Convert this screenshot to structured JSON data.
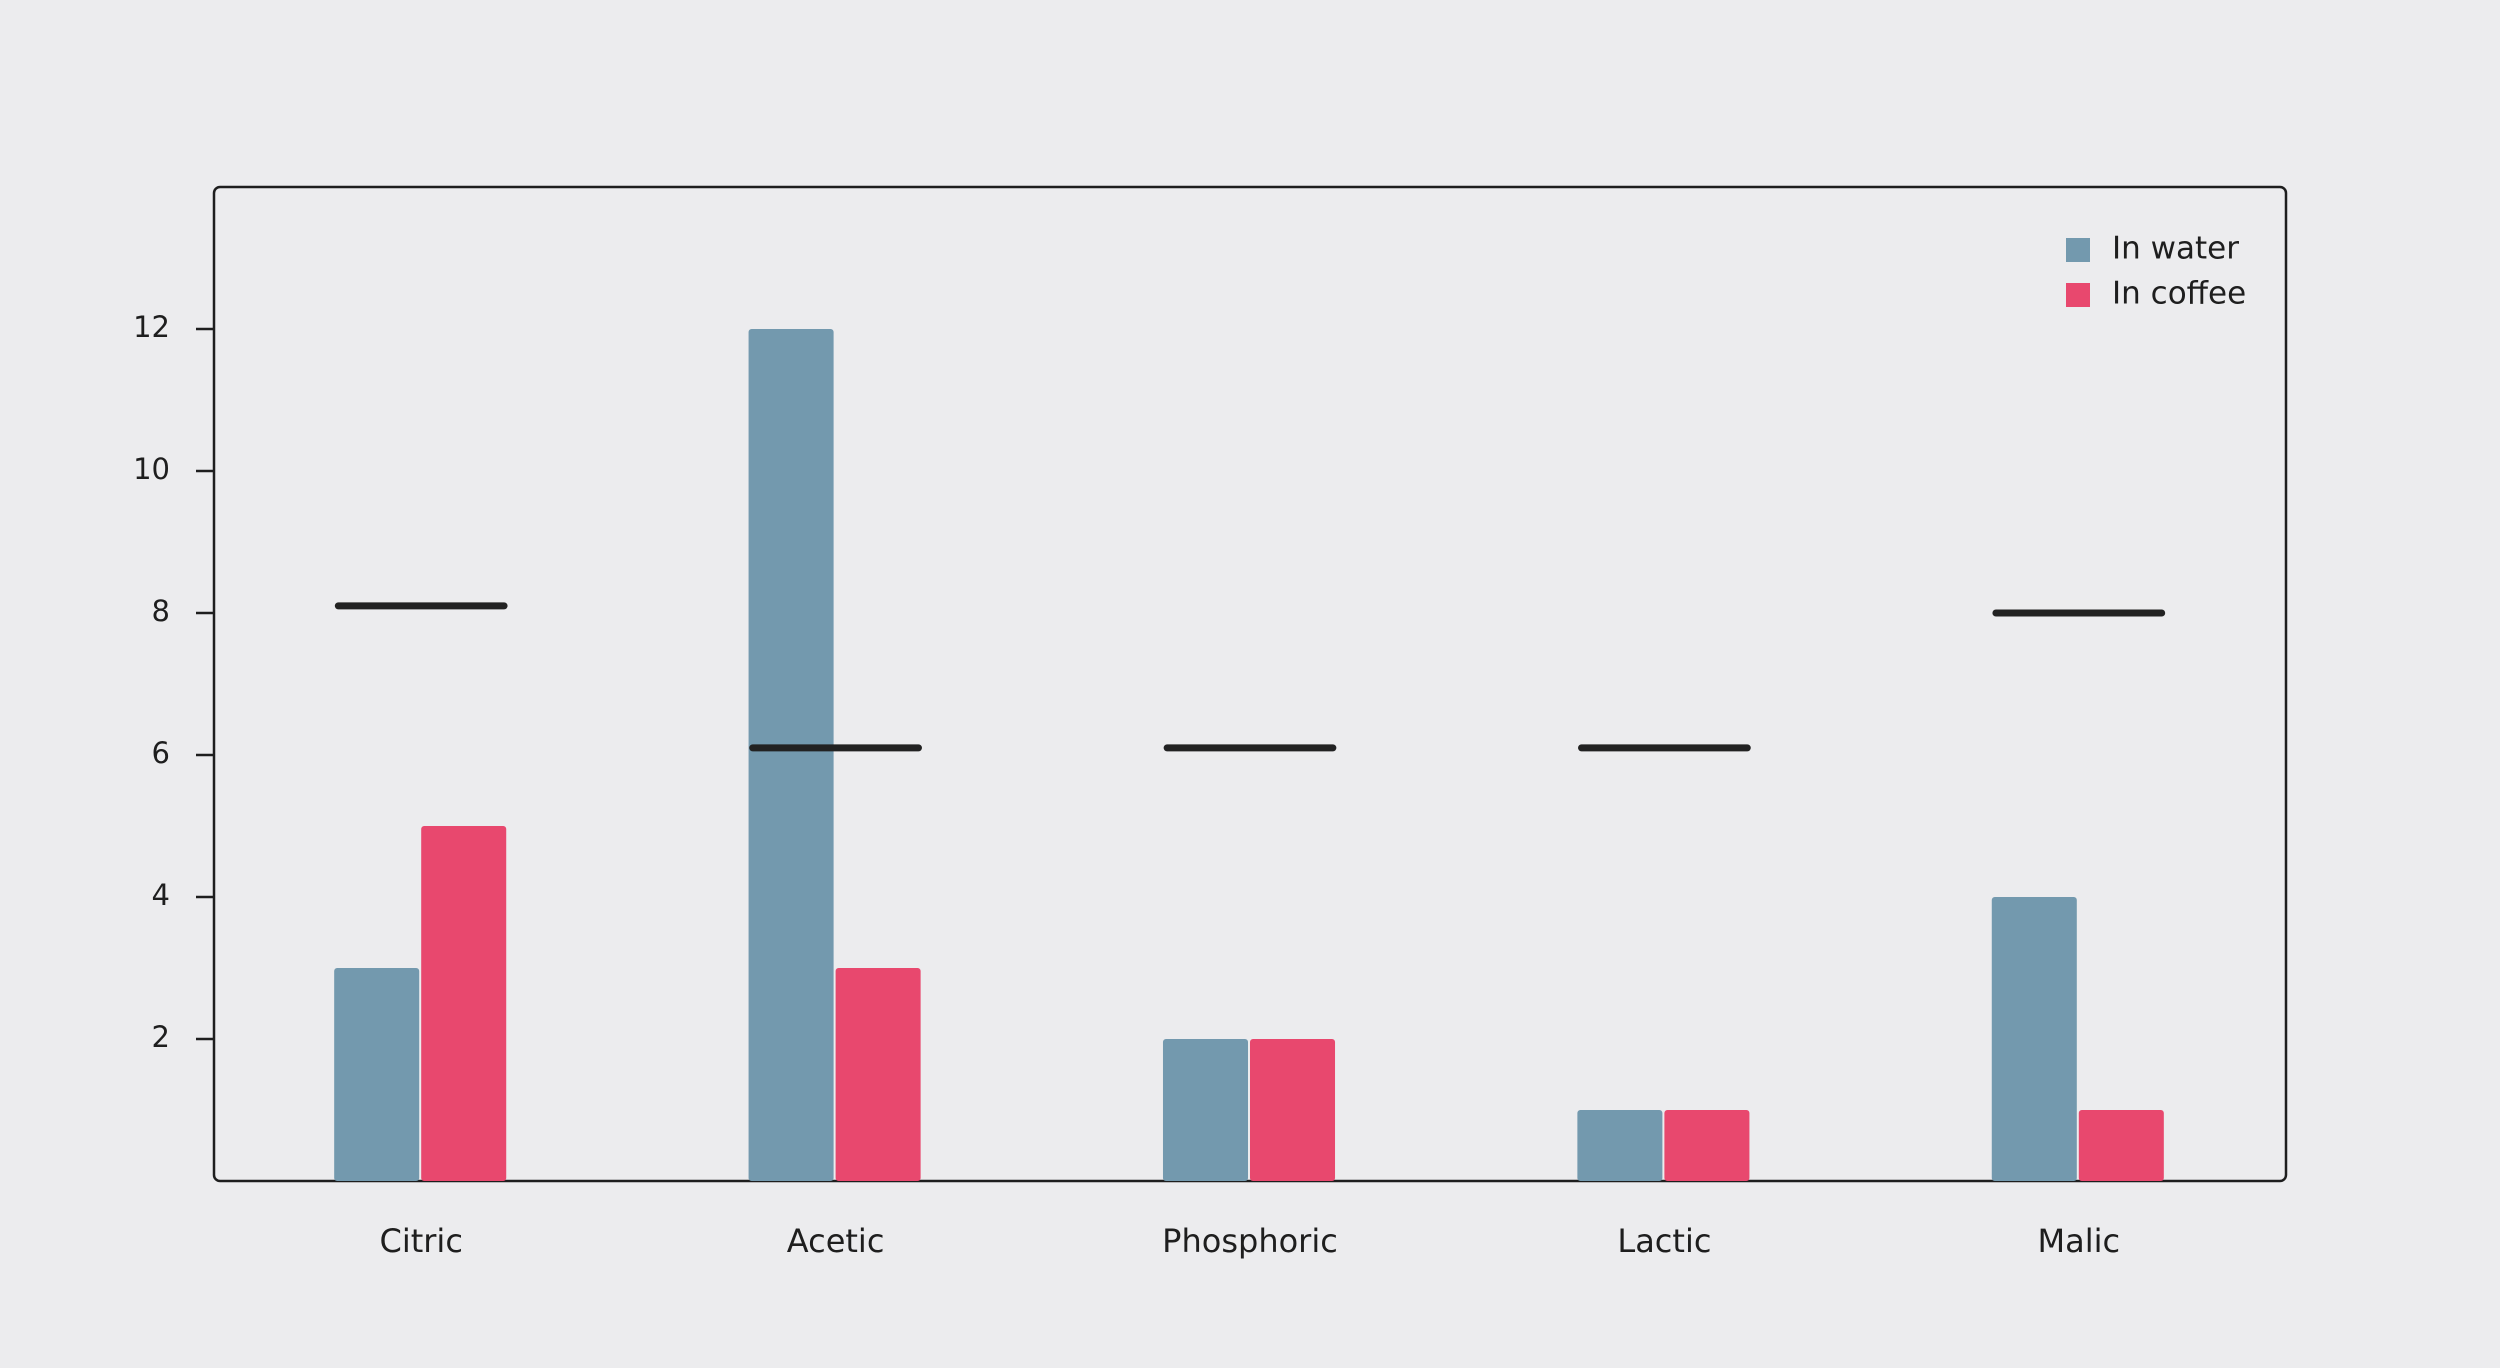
{
  "chart_data": {
    "type": "bar",
    "categories": [
      "Citric",
      "Acetic",
      "Phosphoric",
      "Lactic",
      "Malic"
    ],
    "series": [
      {
        "name": "In water",
        "color": "#7399ae",
        "values": [
          3,
          12,
          2,
          1,
          4
        ]
      },
      {
        "name": "In coffee",
        "color": "#e8486e",
        "values": [
          5,
          3,
          2,
          1,
          1
        ]
      }
    ],
    "reference": {
      "color": "#222222",
      "values": [
        8.1,
        6.1,
        6.1,
        6.1,
        8.0
      ]
    },
    "ylim": [
      0,
      14
    ],
    "yticks": [
      2,
      4,
      6,
      8,
      10,
      12
    ],
    "legend": "top-right"
  }
}
